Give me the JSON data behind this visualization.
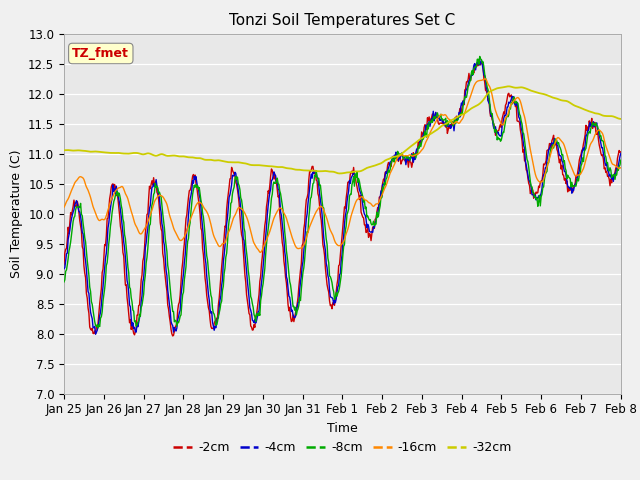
{
  "title": "Tonzi Soil Temperatures Set C",
  "xlabel": "Time",
  "ylabel": "Soil Temperature (C)",
  "ylim": [
    7.0,
    13.0
  ],
  "yticks": [
    7.0,
    7.5,
    8.0,
    8.5,
    9.0,
    9.5,
    10.0,
    10.5,
    11.0,
    11.5,
    12.0,
    12.5,
    13.0
  ],
  "xtick_labels": [
    "Jan 25",
    "Jan 26",
    "Jan 27",
    "Jan 28",
    "Jan 29",
    "Jan 30",
    "Jan 31",
    "Feb 1",
    "Feb 2",
    "Feb 3",
    "Feb 4",
    "Feb 5",
    "Feb 6",
    "Feb 7",
    "Feb 8"
  ],
  "colors": {
    "-2cm": "#cc0000",
    "-4cm": "#0000cc",
    "-8cm": "#00aa00",
    "-16cm": "#ff8800",
    "-32cm": "#cccc00"
  },
  "legend_labels": [
    "-2cm",
    "-4cm",
    "-8cm",
    "-16cm",
    "-32cm"
  ],
  "annotation_text": "TZ_fmet",
  "annotation_color": "#cc0000",
  "annotation_bg": "#ffffcc",
  "plot_bg": "#e8e8e8",
  "title_fontsize": 11,
  "axis_label_fontsize": 9,
  "tick_fontsize": 8.5,
  "legend_fontsize": 9
}
